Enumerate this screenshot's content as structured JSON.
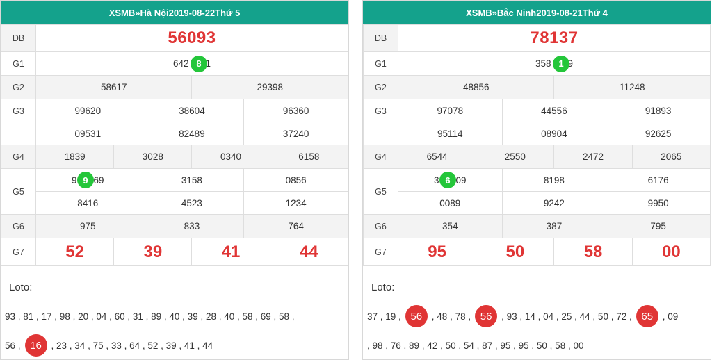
{
  "left": {
    "header": {
      "prefix": "XSMB",
      "sep": "»",
      "province": "Hà Nội",
      "date": "2019-08-22",
      "weekday": "Thứ 5"
    },
    "labels": {
      "db": "ĐB",
      "g1": "G1",
      "g2": "G2",
      "g3": "G3",
      "g4": "G4",
      "g5": "G5",
      "g6": "G6",
      "g7": "G7"
    },
    "db": "56093",
    "g1": {
      "before": "642",
      "ball": "8",
      "after": "1"
    },
    "g2": [
      "58617",
      "29398"
    ],
    "g3_row1": [
      "99620",
      "38604",
      "96360"
    ],
    "g3_row2": [
      "09531",
      "82489",
      "37240"
    ],
    "g4": [
      "1839",
      "3028",
      "0340",
      "6158"
    ],
    "g5_row1": [
      {
        "before": "9",
        "ball": "9",
        "after": "69"
      },
      "3158",
      "0856"
    ],
    "g5_row2": [
      "8416",
      "4523",
      "1234"
    ],
    "g6": [
      "975",
      "833",
      "764"
    ],
    "g7": [
      "52",
      "39",
      "41",
      "44"
    ],
    "loto_title": "Loto:",
    "loto_line1": "93 , 81 , 17 , 98 , 20 , 04 , 60 , 31 , 89 , 40 , 39 , 28 , 40 , 58 , 69 , 58 ,",
    "loto_line2": {
      "before": "56 ,",
      "ball": "16",
      "after": ", 23 , 34 , 75 , 33 , 64 , 52 , 39 , 41 , 44"
    }
  },
  "right": {
    "header": {
      "prefix": "XSMB",
      "sep": "»",
      "province": "Bắc Ninh",
      "date": "2019-08-21",
      "weekday": "Thứ 4"
    },
    "labels": {
      "db": "ĐB",
      "g1": "G1",
      "g2": "G2",
      "g3": "G3",
      "g4": "G4",
      "g5": "G5",
      "g6": "G6",
      "g7": "G7"
    },
    "db": "78137",
    "g1": {
      "before": "358",
      "ball": "1",
      "after": "9"
    },
    "g2": [
      "48856",
      "11248"
    ],
    "g3_row1": [
      "97078",
      "44556",
      "91893"
    ],
    "g3_row2": [
      "95114",
      "08904",
      "92625"
    ],
    "g4": [
      "6544",
      "2550",
      "2472",
      "2065"
    ],
    "g5_row1": [
      {
        "before": "3",
        "ball": "6",
        "after": "09"
      },
      "8198",
      "6176"
    ],
    "g5_row2": [
      "0089",
      "9242",
      "9950"
    ],
    "g6": [
      "354",
      "387",
      "795"
    ],
    "g7": [
      "95",
      "50",
      "58",
      "00"
    ],
    "loto_title": "Loto:",
    "loto_line1": {
      "a": "37 , 19 ,",
      "b1": "56",
      "c": ", 48 , 78 ,",
      "b2": "56",
      "d": ", 93 , 14 , 04 , 25 , 44 , 50 , 72 ,",
      "b3": "65",
      "e": ", 09"
    },
    "loto_line2": ", 98 , 76 , 89 , 42 , 50 , 54 , 87 , 95 , 95 , 50 , 58 , 00"
  },
  "colors": {
    "header_bg": "#14a28c",
    "prize_red": "#e03535",
    "ball_green": "#24c63a",
    "ball_red": "#e03535"
  }
}
